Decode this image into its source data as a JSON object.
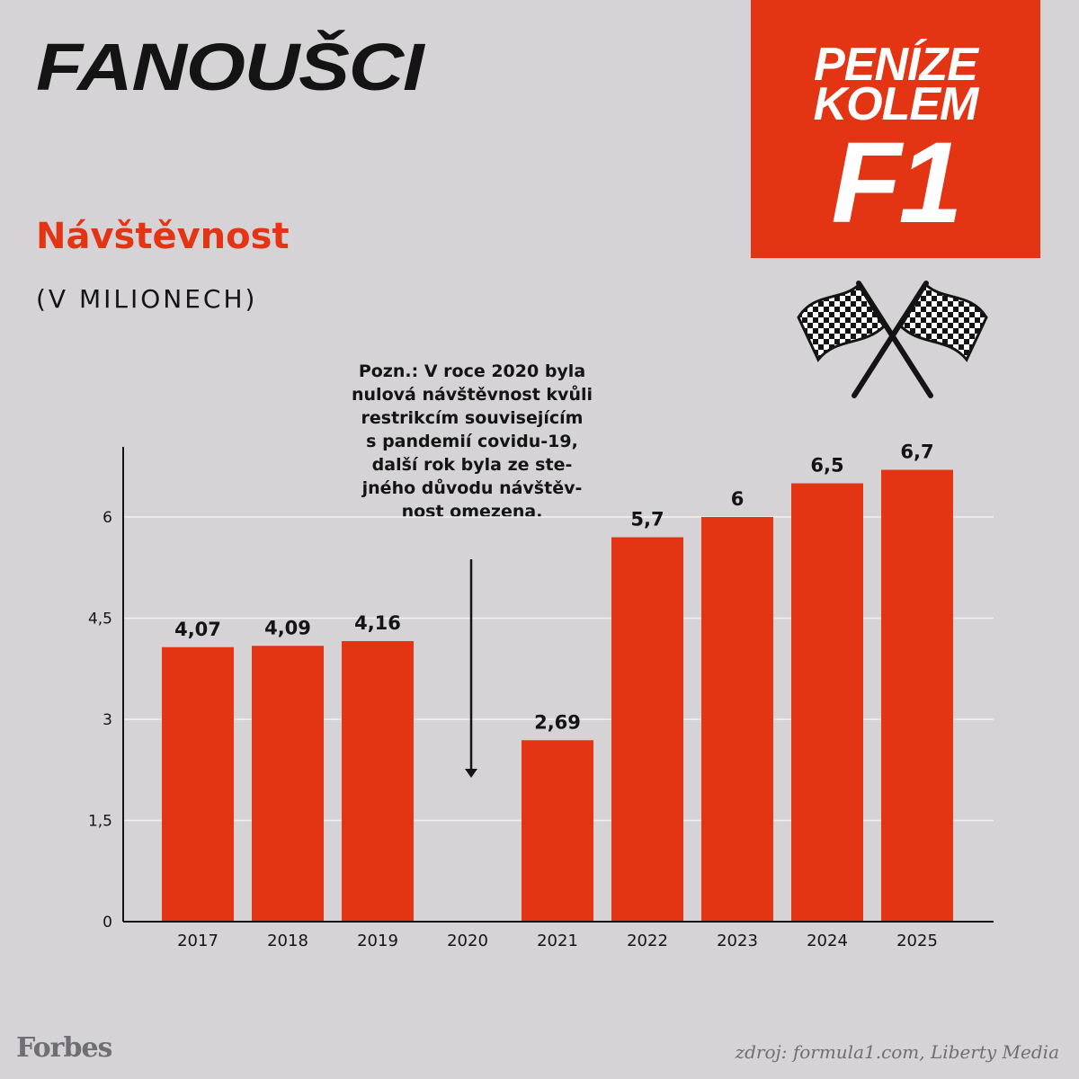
{
  "header": {
    "title": "FANOUŠCI",
    "badge": {
      "line1": "PENÍZE",
      "line2": "KOLEM",
      "line3": "F1"
    }
  },
  "icons": {
    "flags": "crossed-checkered-flags-icon",
    "arrow": "arrow-down-icon"
  },
  "colors": {
    "background": "#d5d3d6",
    "accent": "#e33414",
    "text": "#141414",
    "muted": "#6f6e72",
    "grid": "#f2f1f3"
  },
  "note": "Pozn.: V roce 2020 byla\nnulová návštěvnost kvůli\nrestrikcím souvisejícím\ns pandemií covidu-19,\ndalší rok byla ze ste-\njného důvodu návštěv-\nnost omezena.",
  "footer": {
    "brand": "Forbes",
    "source": "zdroj: formula1.com, Liberty Media"
  },
  "chart_data": {
    "type": "bar",
    "title": "Návštěvnost",
    "subtitle": "(V MILIONECH)",
    "categories": [
      "2017",
      "2018",
      "2019",
      "2020",
      "2021",
      "2022",
      "2023",
      "2024",
      "2025"
    ],
    "values": [
      4.07,
      4.09,
      4.16,
      0,
      2.69,
      5.7,
      6,
      6.5,
      6.7
    ],
    "value_labels": [
      "4,07",
      "4,09",
      "4,16",
      "",
      "2,69",
      "5,7",
      "6",
      "6,5",
      "6,7"
    ],
    "yticks": [
      0,
      1.5,
      3,
      4.5,
      6
    ],
    "ytick_labels": [
      "0",
      "1,5",
      "3",
      "4,5",
      "6"
    ],
    "ylim": [
      0,
      7
    ],
    "grid": true,
    "xlabel": "",
    "ylabel": ""
  }
}
